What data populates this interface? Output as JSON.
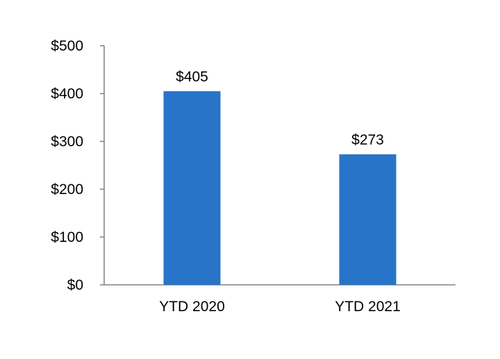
{
  "chart_data": {
    "type": "bar",
    "categories": [
      "YTD 2020",
      "YTD 2021"
    ],
    "values": [
      405,
      273
    ],
    "value_labels": [
      "$405",
      "$273"
    ],
    "y_ticks": [
      0,
      100,
      200,
      300,
      400,
      500
    ],
    "y_tick_labels": [
      "$0",
      "$100",
      "$200",
      "$300",
      "$400",
      "$500"
    ],
    "ylim": [
      0,
      500
    ],
    "title": "",
    "xlabel": "",
    "ylabel": "",
    "grid": false,
    "legend": "none",
    "bar_color": "#2874C8",
    "axis_color": "#808080"
  }
}
